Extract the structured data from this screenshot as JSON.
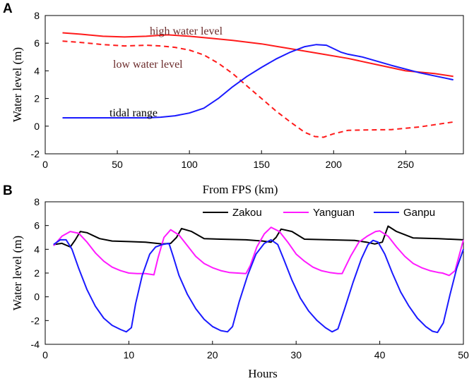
{
  "chart_data": [
    {
      "panel_label": "A",
      "type": "line",
      "xlabel": "From FPS (km)",
      "ylabel": "Water level (m)",
      "xlim": [
        0,
        290
      ],
      "ylim": [
        -2,
        8
      ],
      "xticks": [
        0,
        50,
        100,
        150,
        200,
        250
      ],
      "yticks": [
        -2,
        0,
        2,
        4,
        6,
        8
      ],
      "grid": false,
      "series": [
        {
          "name": "high water level",
          "color": "#ff1a1a",
          "dash": "solid",
          "label_color": "#6b2b2b",
          "x": [
            12,
            25,
            40,
            55,
            70,
            85,
            100,
            115,
            130,
            150,
            170,
            190,
            210,
            230,
            250,
            270,
            283
          ],
          "y": [
            6.75,
            6.65,
            6.5,
            6.45,
            6.5,
            6.6,
            6.5,
            6.35,
            6.2,
            5.95,
            5.6,
            5.25,
            4.9,
            4.45,
            4.0,
            3.8,
            3.6
          ]
        },
        {
          "name": "low water level",
          "color": "#ff1a1a",
          "dash": "dashed",
          "label_color": "#6b2b2b",
          "x": [
            12,
            25,
            40,
            55,
            70,
            80,
            90,
            100,
            110,
            120,
            130,
            140,
            150,
            160,
            170,
            180,
            187,
            193,
            200,
            210,
            220,
            240,
            260,
            283
          ],
          "y": [
            6.15,
            6.05,
            5.9,
            5.8,
            5.85,
            5.8,
            5.7,
            5.5,
            5.15,
            4.55,
            3.8,
            2.9,
            2.0,
            1.1,
            0.3,
            -0.45,
            -0.75,
            -0.8,
            -0.55,
            -0.3,
            -0.28,
            -0.25,
            -0.05,
            0.3
          ]
        },
        {
          "name": "tidal range",
          "color": "#1a1aff",
          "dash": "solid",
          "label_color": "#000000",
          "x": [
            12,
            30,
            50,
            70,
            80,
            90,
            100,
            110,
            120,
            130,
            140,
            150,
            160,
            170,
            180,
            188,
            195,
            200,
            205,
            210,
            220,
            240,
            260,
            283
          ],
          "y": [
            0.6,
            0.6,
            0.6,
            0.6,
            0.65,
            0.75,
            0.95,
            1.3,
            2.0,
            2.85,
            3.6,
            4.25,
            4.85,
            5.35,
            5.75,
            5.9,
            5.85,
            5.6,
            5.35,
            5.2,
            5.0,
            4.4,
            3.85,
            3.35
          ]
        }
      ]
    },
    {
      "panel_label": "B",
      "type": "line",
      "xlabel": "Hours",
      "ylabel": "Water level (m)",
      "xlim": [
        0,
        50
      ],
      "ylim": [
        -4,
        8
      ],
      "xticks": [
        0,
        10,
        20,
        30,
        40,
        50
      ],
      "yticks": [
        -4,
        -2,
        0,
        2,
        4,
        6,
        8
      ],
      "grid": false,
      "legend_position": "top-right",
      "series": [
        {
          "name": "Zakou",
          "color": "#000000",
          "x": [
            1.0,
            2.0,
            3.0,
            3.6,
            4.2,
            5.0,
            6.5,
            8.0,
            10.0,
            12.0,
            14.0,
            15.0,
            15.7,
            16.3,
            17.5,
            19.0,
            21.0,
            24.0,
            26.0,
            27.0,
            27.6,
            28.2,
            29.5,
            31.0,
            34.0,
            37.0,
            38.4,
            39.4,
            40.3,
            41.0,
            42.0,
            44.0,
            47.0,
            50.0
          ],
          "y": [
            4.4,
            4.5,
            4.2,
            4.8,
            5.5,
            5.4,
            4.9,
            4.7,
            4.65,
            4.6,
            4.45,
            4.5,
            5.0,
            5.75,
            5.5,
            4.9,
            4.85,
            4.8,
            4.7,
            4.6,
            5.0,
            5.7,
            5.5,
            4.85,
            4.8,
            4.75,
            4.6,
            4.45,
            4.6,
            5.95,
            5.5,
            4.95,
            4.9,
            4.8
          ]
        },
        {
          "name": "Yanguan",
          "color": "#ff1aff",
          "x": [
            1.0,
            2.0,
            3.0,
            4.0,
            5.0,
            6.0,
            7.0,
            8.0,
            9.0,
            10.0,
            11.0,
            12.0,
            13.0,
            13.5,
            14.2,
            15.0,
            16.0,
            17.0,
            18.0,
            19.0,
            20.0,
            21.0,
            22.0,
            23.0,
            24.0,
            24.5,
            25.3,
            26.2,
            27.0,
            28.0,
            29.0,
            30.0,
            31.0,
            32.0,
            33.0,
            34.0,
            35.0,
            35.5,
            36.5,
            37.5,
            38.5,
            39.5,
            40.0,
            41.0,
            42.0,
            43.0,
            44.0,
            45.0,
            46.0,
            47.0,
            47.5,
            48.3,
            49.0,
            50.0
          ],
          "y": [
            4.3,
            5.1,
            5.5,
            5.35,
            4.6,
            3.7,
            3.0,
            2.5,
            2.2,
            2.0,
            1.95,
            1.95,
            1.85,
            3.3,
            5.0,
            5.65,
            5.2,
            4.3,
            3.4,
            2.8,
            2.45,
            2.2,
            2.05,
            2.0,
            1.95,
            2.6,
            4.2,
            5.3,
            5.85,
            5.5,
            4.6,
            3.6,
            3.0,
            2.5,
            2.2,
            2.05,
            1.95,
            1.95,
            3.4,
            4.6,
            5.1,
            5.5,
            5.55,
            5.1,
            4.2,
            3.4,
            2.8,
            2.45,
            2.2,
            2.05,
            2.0,
            1.8,
            2.2,
            4.8
          ]
        },
        {
          "name": "Ganpu",
          "color": "#1a1aff",
          "x": [
            1.0,
            1.8,
            2.5,
            3.2,
            4.0,
            5.0,
            6.0,
            7.0,
            8.0,
            9.0,
            9.7,
            10.3,
            10.8,
            11.6,
            12.5,
            13.2,
            14.0,
            14.8,
            15.3,
            16.0,
            17.0,
            18.0,
            19.0,
            20.0,
            21.0,
            21.8,
            22.4,
            23.2,
            24.2,
            25.2,
            26.2,
            27.0,
            27.8,
            28.5,
            29.5,
            30.5,
            31.5,
            32.5,
            33.5,
            34.3,
            35.0,
            35.8,
            36.8,
            37.8,
            38.6,
            39.2,
            39.8,
            40.6,
            41.5,
            42.5,
            43.5,
            44.5,
            45.5,
            46.3,
            46.9,
            47.6,
            48.4,
            49.2,
            50.0
          ],
          "y": [
            4.4,
            4.8,
            4.8,
            4.0,
            2.4,
            0.6,
            -0.8,
            -1.8,
            -2.4,
            -2.75,
            -2.95,
            -2.6,
            -0.6,
            1.8,
            3.6,
            4.2,
            4.4,
            4.5,
            3.4,
            1.8,
            0.2,
            -1.0,
            -1.9,
            -2.5,
            -2.85,
            -2.95,
            -2.5,
            -0.4,
            1.8,
            3.6,
            4.5,
            4.8,
            4.4,
            3.2,
            1.4,
            -0.1,
            -1.2,
            -2.0,
            -2.6,
            -2.95,
            -2.7,
            -1.0,
            1.2,
            3.2,
            4.4,
            4.75,
            4.6,
            3.6,
            2.0,
            0.4,
            -0.8,
            -1.8,
            -2.5,
            -2.9,
            -3.0,
            -2.2,
            0.2,
            2.4,
            4.0
          ]
        }
      ]
    }
  ]
}
